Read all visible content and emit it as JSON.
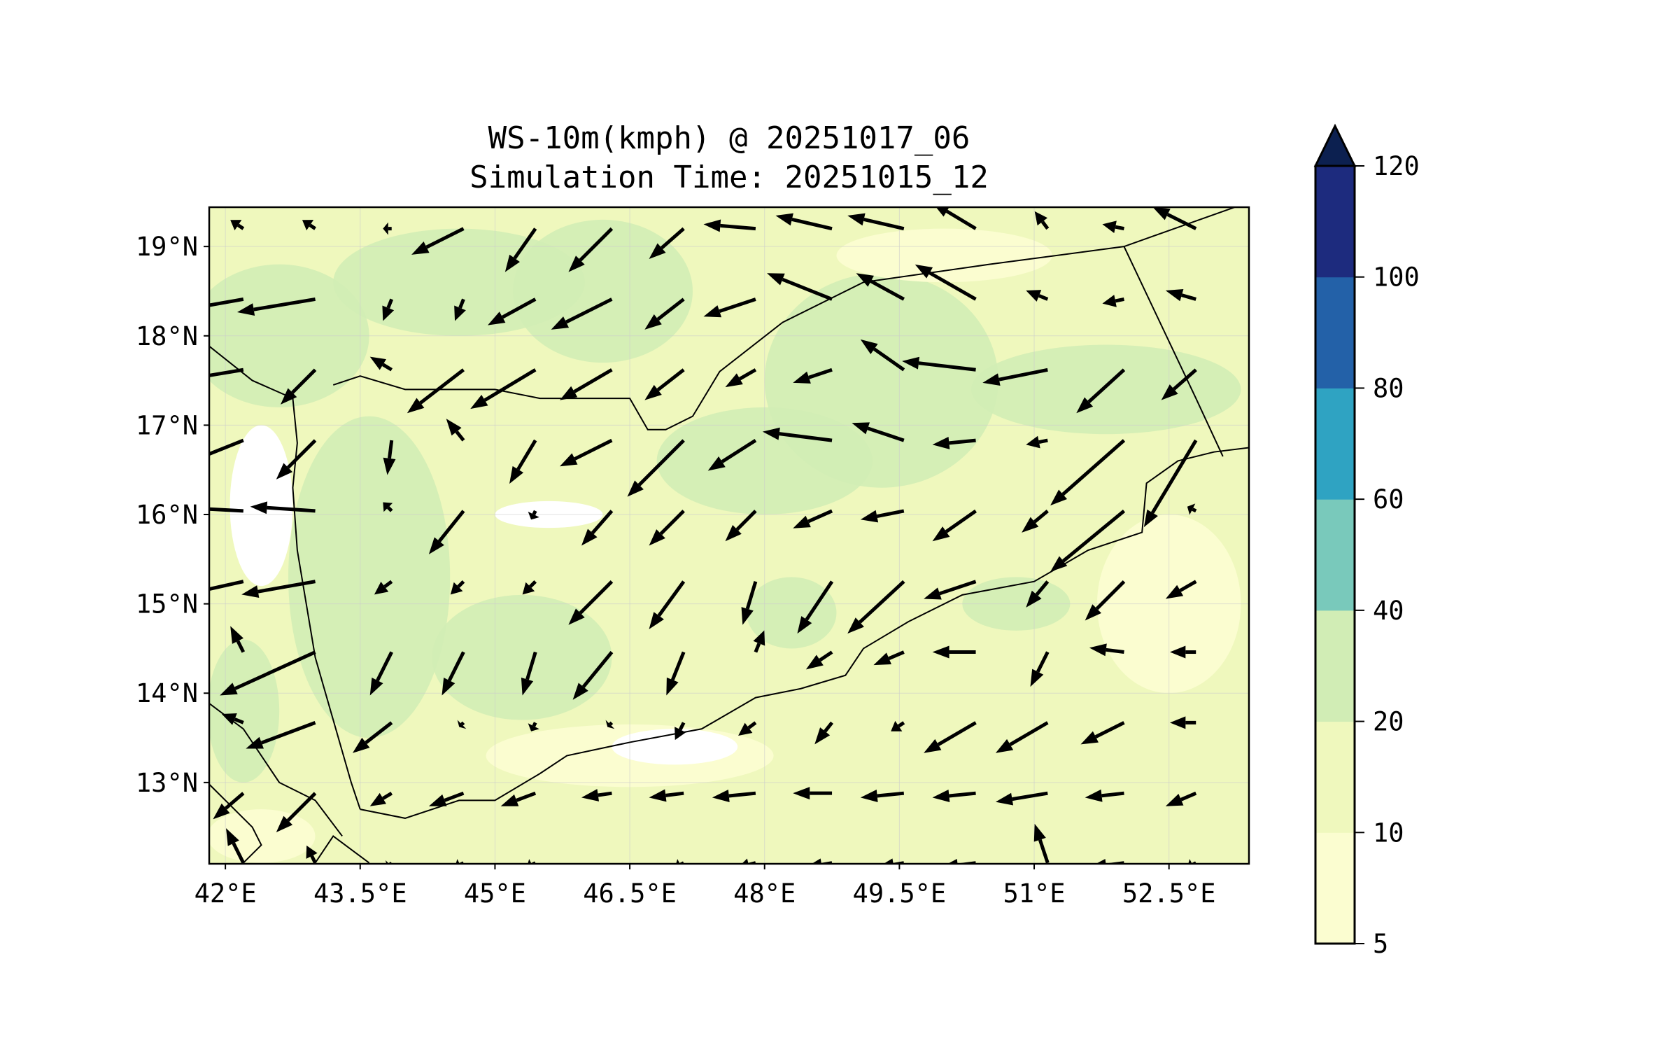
{
  "chart_data": {
    "type": "quiver-contourf",
    "title": "WS-10m(kmph) @ 20251017_06",
    "subtitle": "Simulation Time: 20251015_12",
    "lon_range": [
      41.82,
      53.39
    ],
    "lat_range": [
      12.09,
      19.44
    ],
    "x_ticks": [
      {
        "v": 42,
        "label": "42°E"
      },
      {
        "v": 43.5,
        "label": "43.5°E"
      },
      {
        "v": 45,
        "label": "45°E"
      },
      {
        "v": 46.5,
        "label": "46.5°E"
      },
      {
        "v": 48,
        "label": "48°E"
      },
      {
        "v": 49.5,
        "label": "49.5°E"
      },
      {
        "v": 51,
        "label": "51°E"
      },
      {
        "v": 52.5,
        "label": "52.5°E"
      }
    ],
    "y_ticks": [
      {
        "v": 13,
        "label": "13°N"
      },
      {
        "v": 14,
        "label": "14°N"
      },
      {
        "v": 15,
        "label": "15°N"
      },
      {
        "v": 16,
        "label": "16°N"
      },
      {
        "v": 17,
        "label": "17°N"
      },
      {
        "v": 18,
        "label": "18°N"
      },
      {
        "v": 19,
        "label": "19°N"
      }
    ],
    "grid": true,
    "colorbar": {
      "levels": [
        5,
        10,
        20,
        40,
        60,
        80,
        100,
        120
      ],
      "labels": [
        "5",
        "10",
        "20",
        "40",
        "60",
        "80",
        "100",
        "120"
      ],
      "colors": [
        "#fbfdd0",
        "#eff8bd",
        "#d1edb5",
        "#79c9bb",
        "#2fa3c2",
        "#2361a8",
        "#1d2b7e"
      ],
      "extend_color": "#0c2050",
      "extend": "max"
    },
    "wind_vectors": {
      "lons": [
        42.2,
        43.0,
        43.85,
        44.65,
        45.45,
        46.3,
        47.1,
        47.9,
        48.75,
        49.55,
        50.35,
        51.15,
        52.0,
        52.8
      ],
      "lats": [
        19.2,
        18.41,
        17.62,
        16.83,
        16.04,
        15.25,
        14.46,
        13.67,
        12.88,
        12.1
      ],
      "u": [
        [
          -3,
          -3,
          -2,
          -12,
          -7,
          -10,
          -8,
          -12,
          -13,
          -13,
          -10,
          -3,
          -5,
          -10
        ],
        [
          -17,
          -18,
          -2,
          -2,
          -11,
          -14,
          -9,
          -12,
          -15,
          -11,
          -14,
          -5,
          -5,
          -7
        ],
        [
          -24,
          -8,
          -5,
          -13,
          -15,
          -12,
          -9,
          -7,
          -9,
          -10,
          -17,
          -15,
          -11,
          -8
        ],
        [
          -25,
          -9,
          -1,
          -4,
          -6,
          -12,
          -13,
          -11,
          -16,
          -12,
          -10,
          -5,
          -17,
          -12
        ],
        [
          -18,
          -15,
          -2,
          -8,
          -1,
          -7,
          -8,
          -7,
          -9,
          -10,
          -10,
          -6,
          -17,
          -2
        ],
        [
          -18,
          -17,
          -4,
          -3,
          -3,
          -10,
          -8,
          -3,
          -8,
          -13,
          -12,
          -5,
          -9,
          -7
        ],
        [
          -3,
          -22,
          -5,
          -5,
          -3,
          -9,
          -4,
          2,
          -6,
          -7,
          -10,
          -4,
          -8,
          -6
        ],
        [
          -5,
          -16,
          -9,
          -1,
          -1,
          -1,
          -2,
          -4,
          -4,
          -3,
          -12,
          -12,
          -10,
          -6
        ],
        [
          -7,
          -9,
          -5,
          -8,
          -8,
          -7,
          -8,
          -10,
          -9,
          -10,
          -10,
          -12,
          -9,
          -7
        ],
        [
          -4,
          -2,
          -1,
          -2,
          -2,
          0,
          -2,
          -4,
          -6,
          -6,
          -8,
          -3,
          -8,
          -2
        ]
      ],
      "v": [
        [
          2,
          2,
          0,
          -6,
          -10,
          -10,
          -7,
          1,
          3,
          3,
          6,
          4,
          1,
          5
        ],
        [
          -3,
          -3,
          -5,
          -5,
          -6,
          -7,
          -7,
          -4,
          6,
          6,
          8,
          2,
          -1,
          2
        ],
        [
          -4,
          -8,
          3,
          -10,
          -9,
          -7,
          -7,
          -4,
          -3,
          7,
          2,
          -3,
          -10,
          -7
        ],
        [
          -10,
          -9,
          -8,
          5,
          -10,
          -6,
          -13,
          -7,
          2,
          4,
          -1,
          -1,
          -15,
          -20
        ],
        [
          1,
          1,
          2,
          -10,
          -2,
          -8,
          -8,
          -7,
          -4,
          -2,
          -7,
          -5,
          -14,
          1
        ],
        [
          -4,
          -3,
          -3,
          -3,
          -3,
          -10,
          -11,
          -10,
          -12,
          -12,
          -4,
          -6,
          -9,
          -4
        ],
        [
          6,
          -10,
          -10,
          -10,
          -10,
          -11,
          -10,
          5,
          -4,
          -3,
          0,
          -8,
          1,
          0
        ],
        [
          2,
          -6,
          -7,
          -1,
          -2,
          -1,
          -4,
          -3,
          -5,
          -2,
          -7,
          -7,
          -5,
          0
        ],
        [
          -6,
          -9,
          -3,
          -3,
          -3,
          -1,
          -1,
          -1,
          0,
          -1,
          -1,
          -2,
          -1,
          -3
        ],
        [
          8,
          4,
          -1,
          -1,
          -1,
          0,
          -1,
          -1,
          -1,
          -1,
          -1,
          9,
          -1,
          -1
        ]
      ]
    }
  }
}
